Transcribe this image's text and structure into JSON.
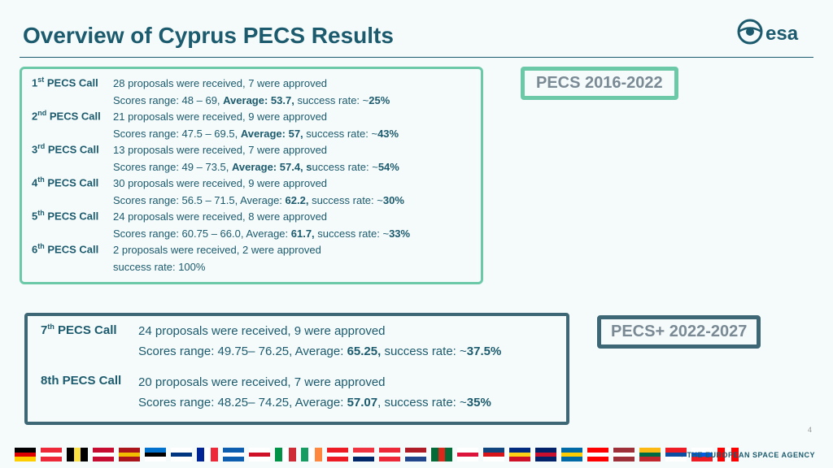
{
  "title": "Overview of Cyprus PECS Results",
  "badge1": "PECS 2016-2022",
  "badge2": "PECS+ 2022-2027",
  "pagenum": "4",
  "footer": "→ THE EUROPEAN SPACE AGENCY",
  "calls1": [
    {
      "ord": "1",
      "sup": "st",
      "l1": "28 proposals were received, 7 were approved",
      "l2": "Scores range: 48 – 69, <b>Average: 53.7,</b> success rate: ~<b>25%</b>"
    },
    {
      "ord": "2",
      "sup": "nd",
      "l1": "21 proposals were received, 9 were approved",
      "l2": "Scores range: 47.5 – 69.5, <b>Average: 57,</b> success rate: ~<b>43%</b>"
    },
    {
      "ord": "3",
      "sup": "rd",
      "l1": "13 proposals were received, 7 were approved",
      "l2": "Scores range: 49 – 73.5, <b>Average: 57.4, s</b>uccess rate: ~<b>54%</b>"
    },
    {
      "ord": "4",
      "sup": "th",
      "l1": "30 proposals were received, 9 were approved",
      "l2": "Scores range: 56.5 – 71.5, Average: <b>62.2,</b> success rate: ~<b>30%</b>"
    },
    {
      "ord": "5",
      "sup": "th",
      "l1": "24 proposals were received, 8 were approved",
      "l2": "Scores range: 60.75 – 66.0, Average: <b>61.7,</b>  success rate: ~<b>33%</b>"
    },
    {
      "ord": "6",
      "sup": "th",
      "l1": "2 proposals were received, 2 were approved",
      "l2": " success rate: 100%"
    }
  ],
  "calls2": [
    {
      "ord": "7",
      "sup": "th",
      "l1": "24 proposals were received, 9 were approved",
      "l2": "Scores range: 49.75– 76.25, Average: <b>65.25,</b>  success rate: ~<b>37.5%</b>"
    },
    {
      "ord": "8th",
      "sup": "",
      "l1": "20 proposals were received, 7 were approved",
      "l2": "Scores range: 48.25– 74.25, Average: <b>57.07</b>,  success rate: ~<b>35%</b>"
    }
  ],
  "flags": [
    [
      [
        "#000",
        "#dd0000",
        "#ffce00"
      ],
      "h"
    ],
    [
      [
        "#ed2939",
        "#fff",
        "#ed2939"
      ],
      "h"
    ],
    [
      [
        "#000",
        "#fae042",
        "#000"
      ],
      "v"
    ],
    [
      [
        "#c60c30",
        "#fff",
        "#c60c30"
      ],
      "h"
    ],
    [
      [
        "#aa151b",
        "#f1bf00",
        "#aa151b"
      ],
      "h"
    ],
    [
      [
        "#0072ce",
        "#000",
        "#fff"
      ],
      "h"
    ],
    [
      [
        "#fff",
        "#003580",
        "#fff"
      ],
      "h"
    ],
    [
      [
        "#002395",
        "#fff",
        "#ed2939"
      ],
      "v"
    ],
    [
      [
        "#0d5eaf",
        "#fff",
        "#0d5eaf"
      ],
      "h"
    ],
    [
      [
        "#fff",
        "#ce1126",
        "#fff"
      ],
      "h"
    ],
    [
      [
        "#009246",
        "#fff",
        "#ce2b37"
      ],
      "v"
    ],
    [
      [
        "#169b62",
        "#fff",
        "#ff883e"
      ],
      "v"
    ],
    [
      [
        "#ed1c24",
        "#fff",
        "#ed1c24"
      ],
      "h"
    ],
    [
      [
        "#ef3340",
        "#fff",
        "#002868"
      ],
      "h"
    ],
    [
      [
        "#ed2939",
        "#fff",
        "#ed2939"
      ],
      "h"
    ],
    [
      [
        "#ae1c28",
        "#fff",
        "#21468b"
      ],
      "h"
    ],
    [
      [
        "#046a38",
        "#da291c",
        "#046a38"
      ],
      "v"
    ],
    [
      [
        "#fff",
        "#dc143c",
        "#fff"
      ],
      "h"
    ],
    [
      [
        "#11457e",
        "#d7141a",
        "#fff"
      ],
      "h"
    ],
    [
      [
        "#002b7f",
        "#fcd116",
        "#ce1126"
      ],
      "h"
    ],
    [
      [
        "#012169",
        "#c8102e",
        "#012169"
      ],
      "h"
    ],
    [
      [
        "#006aa7",
        "#fecc00",
        "#006aa7"
      ],
      "h"
    ],
    [
      [
        "#ff0000",
        "#fff",
        "#ff0000"
      ],
      "h"
    ],
    [
      [
        "#9e3039",
        "#fff",
        "#9e3039"
      ],
      "h"
    ],
    [
      [
        "#fdb913",
        "#006a44",
        "#c1272d"
      ],
      "h"
    ],
    [
      [
        "#ee1c25",
        "#0b4ea2",
        "#fff"
      ],
      "h"
    ],
    [
      [
        "#fff",
        "#005ce5",
        "#ed1c24"
      ],
      "h"
    ],
    [
      [
        "#ff0000",
        "#fff",
        "#ff0000"
      ],
      "v"
    ]
  ]
}
